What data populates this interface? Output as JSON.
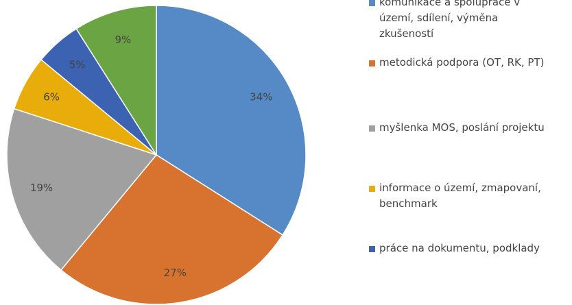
{
  "chart_data": {
    "type": "pie",
    "categories": [
      "komunikace a spolupráce v území, sdílení, výměna zkušeností",
      "metodická podpora (OT, RK, PT)",
      "myšlenka MOS, poslání projektu",
      "informace o území, zmapovaní, benchmark",
      "práce na dokumentu, podklady",
      null
    ],
    "values": [
      34,
      27,
      19,
      6,
      5,
      9
    ],
    "value_labels": [
      "34%",
      "27%",
      "19%",
      "6%",
      "5%",
      "9%"
    ],
    "colors": [
      "#558ac6",
      "#d8722f",
      "#a0a0a0",
      "#e8ad0a",
      "#3c62b2",
      "#6aa443"
    ],
    "legend": "right"
  }
}
